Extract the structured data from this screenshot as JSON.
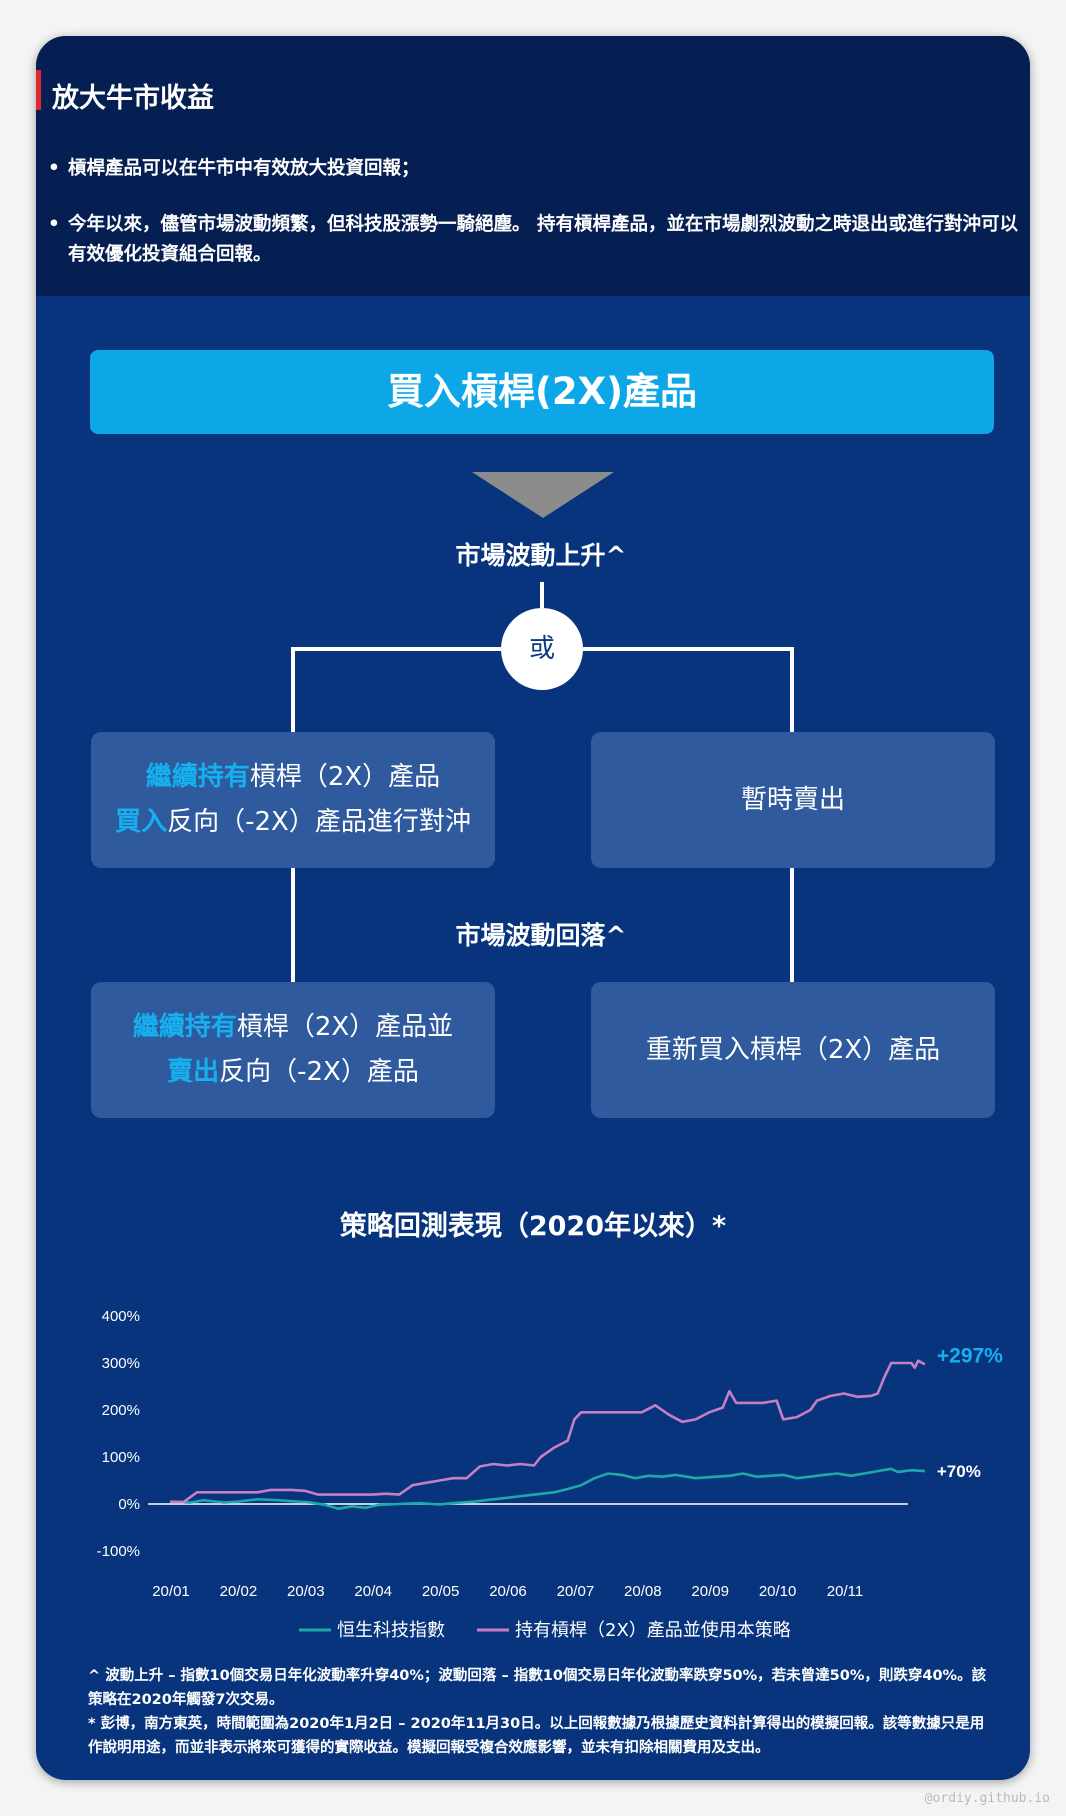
{
  "header": {
    "title": "放大牛市收益",
    "bullets": [
      "槓桿產品可以在牛市中有效放大投資回報；",
      "今年以來，儘管市場波動頻繁，但科技股漲勢一騎絕塵。 持有槓桿產品，並在市場劇烈波動之時退出或進行對沖可以有效優化投資組合回報。"
    ],
    "bullet_marker": "•"
  },
  "flow": {
    "buy_label": "買入槓桿(2X)產品",
    "rise_label": "市場波動上升^",
    "or_label": "或",
    "fall_label": "市場波動回落^",
    "box1": {
      "hl1": "繼續持有",
      "t1": "槓桿（2X）產品",
      "hl2": "買入",
      "t2": "反向（-2X）產品進行對沖"
    },
    "box2": {
      "t1": "暫時賣出"
    },
    "box3": {
      "hl1": "繼續持有",
      "t1": "槓桿（2X）產品並",
      "hl2": "賣出",
      "t2": "反向（-2X）產品"
    },
    "box4": {
      "t1": "重新買入槓桿（2X）產品"
    },
    "colors": {
      "highlight": "#16b0ef",
      "box": "#2f5a9e",
      "buy": "#0da7e8"
    }
  },
  "chart_data": {
    "type": "line",
    "title": "策略回測表現（2020年以來）*",
    "y_ticks": [
      "400%",
      "300%",
      "200%",
      "100%",
      "0%",
      "-100%"
    ],
    "ylim": [
      -100,
      400
    ],
    "x_ticks": [
      "20/01",
      "20/02",
      "20/03",
      "20/04",
      "20/05",
      "20/06",
      "20/07",
      "20/08",
      "20/09",
      "20/10",
      "20/11"
    ],
    "xlim": [
      0,
      11.2
    ],
    "series": [
      {
        "name": "恒生科技指數",
        "color": "#1fa7a9",
        "end_label": "+70%",
        "end_label_color": "#ffffff",
        "points": [
          [
            0,
            5
          ],
          [
            0.3,
            3
          ],
          [
            0.5,
            8
          ],
          [
            0.8,
            3
          ],
          [
            1.0,
            5
          ],
          [
            1.3,
            10
          ],
          [
            1.6,
            8
          ],
          [
            1.9,
            5
          ],
          [
            2.1,
            3
          ],
          [
            2.3,
            -2
          ],
          [
            2.5,
            -10
          ],
          [
            2.7,
            -5
          ],
          [
            2.9,
            -8
          ],
          [
            3.1,
            -2
          ],
          [
            3.4,
            0
          ],
          [
            3.7,
            2
          ],
          [
            4.0,
            -1
          ],
          [
            4.2,
            2
          ],
          [
            4.5,
            5
          ],
          [
            4.8,
            10
          ],
          [
            5.1,
            15
          ],
          [
            5.4,
            20
          ],
          [
            5.7,
            25
          ],
          [
            5.9,
            32
          ],
          [
            6.1,
            40
          ],
          [
            6.3,
            55
          ],
          [
            6.5,
            65
          ],
          [
            6.7,
            62
          ],
          [
            6.9,
            55
          ],
          [
            7.1,
            60
          ],
          [
            7.3,
            58
          ],
          [
            7.5,
            62
          ],
          [
            7.8,
            55
          ],
          [
            8.1,
            58
          ],
          [
            8.3,
            60
          ],
          [
            8.5,
            65
          ],
          [
            8.7,
            58
          ],
          [
            8.9,
            60
          ],
          [
            9.1,
            62
          ],
          [
            9.3,
            55
          ],
          [
            9.5,
            58
          ],
          [
            9.7,
            62
          ],
          [
            9.9,
            65
          ],
          [
            10.1,
            60
          ],
          [
            10.3,
            65
          ],
          [
            10.5,
            70
          ],
          [
            10.7,
            75
          ],
          [
            10.8,
            68
          ],
          [
            11.0,
            72
          ],
          [
            11.2,
            70
          ]
        ]
      },
      {
        "name": "持有槓桿（2X）產品並使用本策略",
        "color": "#c77fc4",
        "end_label": "+297%",
        "end_label_color": "#16b0ef",
        "points": [
          [
            0,
            5
          ],
          [
            0.2,
            4
          ],
          [
            0.4,
            25
          ],
          [
            0.7,
            25
          ],
          [
            1.0,
            25
          ],
          [
            1.3,
            25
          ],
          [
            1.5,
            30
          ],
          [
            1.8,
            30
          ],
          [
            2.0,
            28
          ],
          [
            2.2,
            20
          ],
          [
            2.4,
            20
          ],
          [
            2.6,
            20
          ],
          [
            2.8,
            20
          ],
          [
            3.0,
            20
          ],
          [
            3.2,
            22
          ],
          [
            3.4,
            20
          ],
          [
            3.6,
            40
          ],
          [
            3.8,
            45
          ],
          [
            4.0,
            50
          ],
          [
            4.2,
            55
          ],
          [
            4.4,
            55
          ],
          [
            4.6,
            80
          ],
          [
            4.8,
            85
          ],
          [
            5.0,
            82
          ],
          [
            5.2,
            85
          ],
          [
            5.4,
            82
          ],
          [
            5.5,
            100
          ],
          [
            5.7,
            120
          ],
          [
            5.9,
            135
          ],
          [
            6.0,
            180
          ],
          [
            6.1,
            195
          ],
          [
            6.4,
            195
          ],
          [
            6.7,
            195
          ],
          [
            7.0,
            195
          ],
          [
            7.2,
            210
          ],
          [
            7.4,
            190
          ],
          [
            7.6,
            175
          ],
          [
            7.8,
            180
          ],
          [
            8.0,
            195
          ],
          [
            8.2,
            205
          ],
          [
            8.3,
            240
          ],
          [
            8.4,
            215
          ],
          [
            8.6,
            215
          ],
          [
            8.8,
            215
          ],
          [
            9.0,
            220
          ],
          [
            9.1,
            180
          ],
          [
            9.3,
            185
          ],
          [
            9.5,
            200
          ],
          [
            9.6,
            220
          ],
          [
            9.7,
            225
          ],
          [
            9.8,
            230
          ],
          [
            10.0,
            235
          ],
          [
            10.2,
            228
          ],
          [
            10.4,
            230
          ],
          [
            10.5,
            235
          ],
          [
            10.6,
            270
          ],
          [
            10.7,
            300
          ],
          [
            10.9,
            300
          ],
          [
            11.0,
            300
          ],
          [
            11.05,
            290
          ],
          [
            11.1,
            305
          ],
          [
            11.2,
            297
          ]
        ]
      }
    ]
  },
  "footnotes": [
    "^ 波動上升 – 指數10個交易日年化波動率升穿40%；波動回落 – 指數10個交易日年化波動率跌穿50%，若未曾達50%，則跌穿40%。該策略在2020年觸發7次交易。",
    "* 彭博，南方東英，時間範圍為2020年1月2日 – 2020年11月30日。以上回報數據乃根據歷史資料計算得出的模擬回報。該等數據只是用作說明用途，而並非表示將來可獲得的實際收益。模擬回報受複合效應影響，並未有扣除相關費用及支出。"
  ],
  "watermark": "@ordiy.github.io"
}
